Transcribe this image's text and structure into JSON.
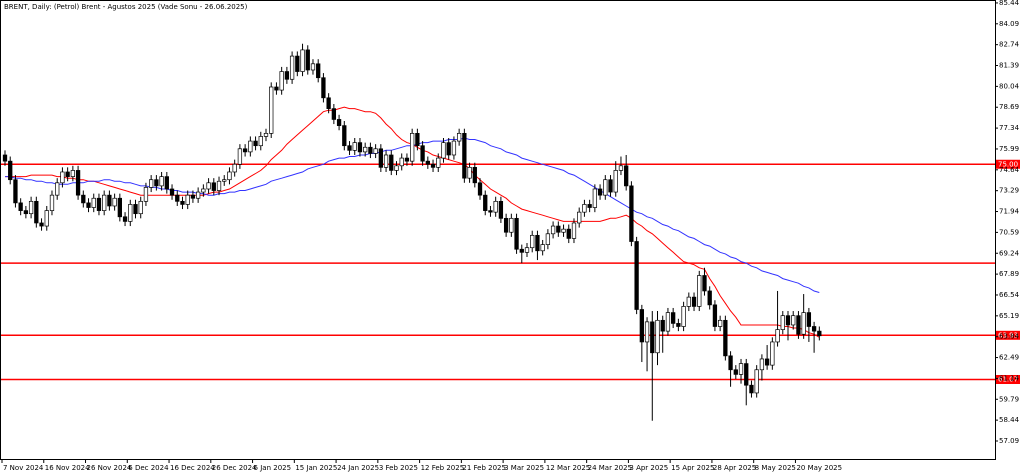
{
  "chart_data": {
    "type": "candlestick",
    "title": "BRENT, Daily:  (Petrol) Brent - Agustos 2025 (Vade Sonu - 26.06.2025)",
    "ylim": [
      55.86,
      85.63
    ],
    "yticks": [
      85.44,
      84.09,
      82.74,
      81.39,
      80.04,
      78.69,
      77.34,
      75.99,
      74.64,
      73.29,
      71.94,
      70.59,
      69.24,
      67.89,
      66.54,
      65.19,
      63.84,
      62.49,
      61.14,
      59.79,
      58.44,
      57.09
    ],
    "levels": [
      {
        "value": 75,
        "label": "75.00"
      },
      68.6,
      {
        "value": 63.93,
        "label": "63.93"
      },
      {
        "value": 61.07,
        "label": "61.07"
      }
    ],
    "level_color": "#ff0000",
    "up_color": "#ffffff",
    "down_color": "#000000",
    "categories": [
      "7 Nov 2024",
      null,
      null,
      null,
      null,
      null,
      null,
      null,
      "16 Nov 2024",
      null,
      null,
      null,
      null,
      null,
      null,
      null,
      "26 Nov 2024",
      null,
      null,
      null,
      null,
      null,
      null,
      null,
      "6 Dec 2024",
      null,
      null,
      null,
      null,
      null,
      null,
      null,
      "16 Dec 2024",
      null,
      null,
      null,
      null,
      null,
      null,
      null,
      "26 Dec 2024",
      null,
      null,
      null,
      null,
      null,
      null,
      null,
      "6 Jan 2025",
      null,
      null,
      null,
      null,
      null,
      null,
      null,
      "15 Jan 2025",
      null,
      null,
      null,
      null,
      null,
      null,
      null,
      "24 Jan 2025",
      null,
      null,
      null,
      null,
      null,
      null,
      null,
      "3 Feb 2025",
      null,
      null,
      null,
      null,
      null,
      null,
      null,
      "12 Feb 2025",
      null,
      null,
      null,
      null,
      null,
      null,
      null,
      "21 Feb 2025",
      null,
      null,
      null,
      null,
      null,
      null,
      null,
      "3 Mar 2025",
      null,
      null,
      null,
      null,
      null,
      null,
      null,
      "12 Mar 2025",
      null,
      null,
      null,
      null,
      null,
      null,
      null,
      "24 Mar 2025",
      null,
      null,
      null,
      null,
      null,
      null,
      null,
      "3 Apr 2025",
      null,
      null,
      null,
      null,
      null,
      null,
      null,
      "15 Apr 2025",
      null,
      null,
      null,
      null,
      null,
      null,
      null,
      "28 Apr 2025",
      null,
      null,
      null,
      null,
      null,
      null,
      null,
      "8 May 2025",
      null,
      null,
      null,
      null,
      null,
      null,
      null,
      "20 May 2025",
      null,
      null,
      null,
      null
    ],
    "open": [
      75.6,
      75.2,
      74.0,
      72.5,
      72.0,
      71.8,
      72.6,
      71.2,
      71.0,
      72.0,
      73.0,
      73.8,
      74.5,
      74.2,
      74.6,
      73.0,
      72.5,
      72.2,
      72.8,
      72.0,
      73.0,
      72.3,
      72.8,
      71.6,
      71.3,
      72.4,
      71.8,
      72.6,
      73.5,
      74.0,
      73.6,
      74.2,
      73.4,
      73.0,
      72.6,
      72.4,
      73.0,
      72.8,
      73.2,
      73.4,
      73.8,
      73.3,
      73.9,
      74.0,
      74.5,
      75.0,
      76.0,
      75.8,
      76.5,
      76.2,
      76.8,
      77.0,
      80.0,
      79.8,
      81.0,
      80.5,
      82.0,
      81.0,
      82.4,
      81.1,
      81.5,
      80.6,
      79.3,
      78.6,
      77.9,
      77.5,
      76.2,
      75.9,
      76.4,
      75.8,
      76.1,
      75.7,
      76.0,
      74.8,
      75.6,
      74.6,
      74.9,
      75.4,
      75.2,
      77.0,
      76.2,
      75.2,
      75.0,
      74.8,
      75.4,
      76.4,
      75.6,
      76.5,
      77.0,
      74.1,
      74.8,
      73.8,
      73.0,
      72.0,
      71.9,
      72.6,
      71.5,
      70.6,
      71.5,
      69.5,
      69.3,
      69.6,
      70.4,
      69.4,
      69.8,
      70.5,
      71.0,
      70.6,
      70.8,
      70.2,
      71.2,
      71.9,
      72.4,
      72.2,
      73.4,
      73.0,
      74.0,
      73.2,
      74.6,
      74.9,
      73.6,
      70.0,
      65.6,
      63.5,
      64.8,
      62.8,
      64.9,
      64.2,
      65.4,
      64.7,
      64.5,
      65.8,
      66.4,
      65.8,
      67.8,
      66.8,
      65.9,
      64.5,
      64.9,
      62.6,
      61.7,
      61.4,
      62.1,
      60.7,
      60.2,
      61.7,
      62.4,
      62.0,
      63.5,
      64.3,
      65.2,
      64.6,
      65.2,
      64.0,
      65.4,
      64.5,
      64.2
    ],
    "high": [
      75.9,
      75.5,
      74.3,
      72.8,
      72.3,
      72.9,
      72.9,
      71.5,
      72.3,
      73.3,
      74.1,
      74.8,
      74.8,
      74.9,
      74.9,
      73.3,
      72.8,
      73.1,
      73.1,
      73.3,
      73.3,
      73.1,
      73.1,
      71.9,
      72.7,
      72.7,
      72.9,
      73.8,
      74.3,
      74.3,
      74.5,
      74.5,
      73.7,
      73.3,
      72.9,
      73.3,
      73.3,
      73.5,
      73.7,
      74.1,
      74.1,
      74.2,
      74.3,
      74.8,
      75.3,
      76.3,
      76.3,
      76.8,
      76.8,
      77.1,
      77.3,
      80.3,
      80.3,
      81.3,
      81.3,
      82.3,
      82.3,
      82.8,
      82.7,
      81.8,
      81.8,
      80.9,
      79.6,
      78.9,
      78.2,
      77.8,
      76.5,
      76.7,
      76.7,
      76.4,
      76.4,
      76.3,
      76.3,
      75.9,
      75.9,
      75.2,
      75.7,
      75.7,
      77.3,
      77.3,
      76.5,
      75.5,
      75.3,
      75.7,
      76.7,
      76.7,
      76.8,
      77.3,
      77.3,
      75.1,
      75.1,
      74.1,
      73.3,
      72.3,
      72.9,
      72.9,
      71.8,
      71.8,
      71.8,
      69.8,
      69.9,
      70.7,
      70.7,
      70.1,
      70.8,
      71.3,
      71.3,
      71.1,
      71.1,
      71.5,
      72.2,
      72.7,
      72.7,
      73.7,
      73.7,
      74.3,
      74.3,
      75.2,
      75.5,
      75.6,
      73.9,
      70.3,
      65.9,
      65.1,
      65.5,
      65.5,
      65.2,
      65.7,
      65.7,
      65.0,
      66.1,
      66.7,
      66.7,
      68.1,
      68.3,
      67.1,
      66.2,
      65.2,
      65.2,
      62.9,
      62.0,
      62.4,
      62.4,
      61.0,
      62.0,
      62.7,
      63.3,
      63.8,
      66.8,
      65.5,
      65.5,
      65.5,
      65.5,
      66.6,
      65.7,
      64.8,
      64.5
    ],
    "low": [
      74.9,
      73.7,
      72.2,
      71.7,
      71.5,
      71.5,
      70.9,
      70.7,
      70.7,
      71.7,
      72.7,
      73.5,
      73.9,
      73.9,
      72.7,
      72.2,
      71.9,
      71.9,
      71.7,
      71.7,
      72.0,
      72.0,
      71.3,
      71.0,
      71.0,
      71.5,
      71.5,
      72.3,
      73.2,
      73.3,
      73.3,
      73.1,
      72.7,
      72.3,
      72.1,
      72.1,
      72.5,
      72.5,
      72.9,
      73.1,
      73.0,
      73.0,
      73.6,
      73.7,
      74.2,
      74.7,
      75.5,
      75.5,
      75.9,
      75.9,
      76.5,
      76.7,
      79.5,
      79.5,
      80.2,
      80.2,
      80.7,
      80.7,
      80.8,
      80.8,
      80.3,
      79.0,
      78.3,
      77.6,
      77.2,
      75.9,
      75.6,
      75.6,
      75.5,
      75.5,
      75.4,
      75.4,
      74.5,
      74.5,
      74.3,
      74.3,
      74.6,
      74.9,
      74.9,
      75.9,
      74.9,
      74.7,
      74.5,
      74.5,
      75.1,
      75.3,
      75.3,
      76.2,
      73.8,
      73.8,
      73.5,
      72.7,
      71.7,
      71.6,
      71.6,
      71.2,
      70.3,
      70.3,
      69.2,
      68.6,
      69.0,
      69.3,
      68.8,
      69.1,
      69.5,
      70.2,
      70.3,
      70.3,
      69.9,
      69.9,
      70.9,
      71.6,
      71.9,
      71.9,
      72.7,
      72.7,
      72.9,
      72.9,
      74.3,
      73.3,
      69.7,
      65.3,
      62.2,
      61.6,
      58.4,
      62.0,
      62.8,
      63.9,
      64.4,
      64.2,
      64.2,
      65.5,
      65.5,
      65.5,
      66.5,
      65.6,
      64.2,
      64.2,
      62.3,
      60.6,
      61.1,
      60.8,
      59.4,
      59.9,
      59.9,
      61.0,
      61.7,
      61.7,
      63.2,
      64.0,
      63.6,
      64.3,
      63.7,
      63.7,
      63.5,
      62.8,
      63.6
    ],
    "close": [
      75.2,
      74.0,
      72.5,
      72.0,
      71.8,
      72.6,
      71.2,
      71.0,
      72.0,
      73.0,
      73.8,
      74.5,
      74.2,
      74.6,
      73.0,
      72.5,
      72.2,
      72.8,
      72.0,
      73.0,
      72.3,
      72.8,
      71.6,
      71.3,
      72.4,
      71.8,
      72.6,
      73.5,
      74.0,
      73.6,
      74.2,
      73.4,
      73.0,
      72.6,
      72.4,
      73.0,
      72.8,
      73.2,
      73.4,
      73.8,
      73.3,
      73.9,
      74.0,
      74.5,
      75.0,
      76.0,
      75.8,
      76.5,
      76.2,
      76.8,
      77.0,
      80.0,
      79.8,
      81.0,
      80.5,
      82.0,
      81.0,
      82.4,
      81.1,
      81.5,
      80.6,
      79.3,
      78.6,
      77.9,
      77.5,
      76.2,
      75.9,
      76.4,
      75.8,
      76.1,
      75.7,
      76.0,
      74.8,
      75.6,
      74.6,
      74.9,
      75.4,
      75.2,
      77.0,
      76.2,
      75.2,
      75.0,
      74.8,
      75.4,
      76.4,
      75.6,
      76.5,
      77.0,
      74.1,
      74.8,
      73.8,
      73.0,
      72.0,
      71.9,
      72.6,
      71.5,
      70.6,
      71.5,
      69.5,
      69.3,
      69.6,
      70.4,
      69.4,
      69.8,
      70.5,
      71.0,
      70.6,
      70.8,
      70.2,
      71.2,
      71.9,
      72.4,
      72.2,
      73.4,
      73.0,
      74.0,
      73.2,
      74.6,
      74.9,
      73.6,
      70.0,
      65.6,
      63.5,
      64.8,
      62.8,
      64.9,
      64.2,
      65.4,
      64.7,
      64.5,
      65.8,
      66.4,
      65.8,
      67.8,
      66.8,
      65.9,
      64.5,
      64.9,
      62.6,
      61.7,
      61.4,
      62.1,
      60.7,
      60.2,
      61.7,
      62.4,
      62.0,
      63.5,
      64.3,
      65.2,
      64.6,
      65.2,
      64.0,
      65.4,
      64.5,
      64.2,
      63.9
    ],
    "series": [
      {
        "color": "#ff0000",
        "values": [
          74.2,
          74.2,
          74.2,
          74.2,
          74.2,
          74.3,
          74.3,
          74.3,
          74.3,
          74.3,
          74.2,
          74.2,
          74.1,
          74.1,
          74.0,
          74.0,
          73.9,
          73.9,
          73.8,
          73.7,
          73.6,
          73.5,
          73.4,
          73.3,
          73.2,
          73.1,
          73.0,
          73.0,
          73.0,
          73.0,
          73.0,
          73.0,
          73.0,
          73.0,
          73.0,
          73.0,
          73.0,
          73.0,
          73.0,
          73.1,
          73.2,
          73.2,
          73.3,
          73.4,
          73.6,
          73.8,
          74.0,
          74.2,
          74.4,
          74.6,
          74.9,
          75.3,
          75.6,
          75.9,
          76.3,
          76.6,
          76.9,
          77.2,
          77.5,
          77.8,
          78.1,
          78.4,
          78.5,
          78.5,
          78.6,
          78.7,
          78.6,
          78.6,
          78.5,
          78.4,
          78.4,
          78.3,
          78.0,
          77.6,
          77.3,
          76.9,
          76.6,
          76.4,
          76.3,
          76.1,
          75.9,
          75.8,
          75.6,
          75.5,
          75.4,
          75.3,
          75.2,
          75.1,
          75.0,
          74.7,
          74.3,
          74.0,
          73.7,
          73.4,
          73.2,
          73.0,
          72.8,
          72.5,
          72.3,
          72.1,
          72.0,
          71.9,
          71.8,
          71.7,
          71.6,
          71.5,
          71.4,
          71.3,
          71.3,
          71.3,
          71.3,
          71.3,
          71.3,
          71.3,
          71.3,
          71.4,
          71.5,
          71.5,
          71.6,
          71.7,
          71.5,
          71.2,
          71.0,
          70.7,
          70.5,
          70.2,
          69.9,
          69.6,
          69.3,
          69.0,
          68.7,
          68.6,
          68.5,
          68.3,
          68.2,
          67.6,
          67.1,
          66.5,
          66.0,
          65.5,
          65.1,
          64.6,
          64.6,
          64.6,
          64.6,
          64.6,
          64.6,
          64.6,
          64.6,
          64.5,
          64.5,
          64.4,
          64.4,
          64.3,
          64.1,
          64.0,
          63.8
        ]
      },
      {
        "color": "#3333ff",
        "values": [
          74.2,
          74.2,
          74.1,
          74.1,
          74.0,
          74.0,
          73.9,
          73.9,
          73.8,
          73.8,
          73.7,
          73.7,
          73.7,
          73.8,
          73.8,
          73.8,
          73.9,
          73.9,
          73.9,
          74.0,
          74.0,
          73.9,
          73.9,
          73.8,
          73.8,
          73.7,
          73.6,
          73.6,
          73.5,
          73.5,
          73.4,
          73.4,
          73.3,
          73.3,
          73.2,
          73.2,
          73.2,
          73.1,
          73.1,
          73.0,
          73.0,
          73.1,
          73.1,
          73.2,
          73.2,
          73.3,
          73.3,
          73.4,
          73.5,
          73.6,
          73.7,
          73.9,
          74.0,
          74.1,
          74.2,
          74.3,
          74.4,
          74.5,
          74.7,
          74.8,
          74.9,
          75.0,
          75.2,
          75.3,
          75.4,
          75.4,
          75.5,
          75.5,
          75.6,
          75.6,
          75.7,
          75.7,
          75.8,
          75.9,
          75.9,
          76.0,
          76.1,
          76.2,
          76.2,
          76.3,
          76.4,
          76.4,
          76.5,
          76.5,
          76.5,
          76.6,
          76.6,
          76.6,
          76.7,
          76.6,
          76.6,
          76.5,
          76.4,
          76.2,
          76.1,
          76.0,
          75.8,
          75.7,
          75.6,
          75.4,
          75.3,
          75.2,
          75.1,
          75.0,
          74.9,
          74.8,
          74.7,
          74.6,
          74.4,
          74.3,
          74.1,
          73.9,
          73.7,
          73.5,
          73.3,
          73.1,
          72.9,
          72.7,
          72.5,
          72.3,
          72.1,
          71.9,
          71.8,
          71.6,
          71.5,
          71.3,
          71.1,
          71.0,
          70.8,
          70.7,
          70.5,
          70.3,
          70.2,
          70.0,
          69.8,
          69.7,
          69.5,
          69.3,
          69.2,
          69.0,
          68.9,
          68.7,
          68.6,
          68.4,
          68.3,
          68.1,
          68.0,
          67.9,
          67.8,
          67.6,
          67.5,
          67.4,
          67.3,
          67.1,
          67.0,
          66.8,
          66.7
        ]
      }
    ]
  }
}
